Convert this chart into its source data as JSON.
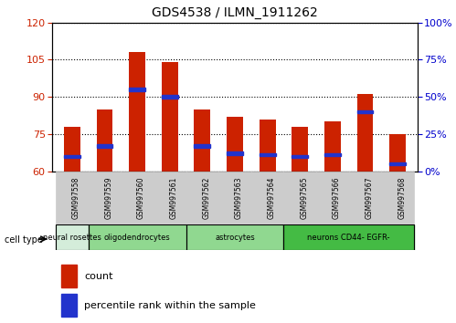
{
  "title": "GDS4538 / ILMN_1911262",
  "samples": [
    "GSM997558",
    "GSM997559",
    "GSM997560",
    "GSM997561",
    "GSM997562",
    "GSM997563",
    "GSM997564",
    "GSM997565",
    "GSM997566",
    "GSM997567",
    "GSM997568"
  ],
  "count_values": [
    78,
    85,
    108,
    104,
    85,
    82,
    81,
    78,
    80,
    91,
    75
  ],
  "percentile_values": [
    10,
    17,
    55,
    50,
    17,
    12,
    11,
    10,
    11,
    40,
    5
  ],
  "left_ylim": [
    60,
    120
  ],
  "right_ylim": [
    0,
    100
  ],
  "left_yticks": [
    60,
    75,
    90,
    105,
    120
  ],
  "right_yticks": [
    0,
    25,
    50,
    75,
    100
  ],
  "right_yticklabels": [
    "0%",
    "25%",
    "50%",
    "75%",
    "100%"
  ],
  "bar_color": "#cc2200",
  "blue_color": "#2233cc",
  "bar_width": 0.5,
  "grid_color": "#000000",
  "tick_color_left": "#cc2200",
  "tick_color_right": "#0000cc",
  "legend_count_label": "count",
  "legend_percentile_label": "percentile rank within the sample",
  "cell_type_labels": [
    "neural rosettes",
    "oligodendrocytes",
    "astrocytes",
    "neurons CD44- EGFR-"
  ],
  "cell_type_starts": [
    0,
    1,
    4,
    7
  ],
  "cell_type_ends": [
    1,
    4,
    7,
    11
  ],
  "cell_type_colors": [
    "#d4edda",
    "#90d890",
    "#90d890",
    "#44bb44"
  ],
  "sample_box_color": "#cccccc",
  "xlabel_cell_type": "cell type"
}
